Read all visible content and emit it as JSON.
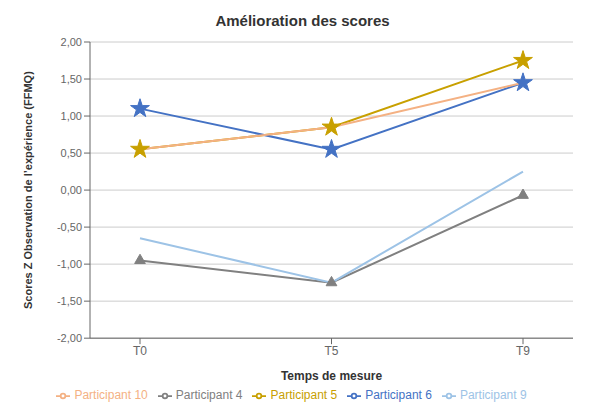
{
  "chart_data": {
    "type": "line",
    "title": "Amélioration des scores",
    "xlabel": "Temps de mesure",
    "ylabel": "Scores Z Observation de l’expérience (FFMQ)",
    "categories": [
      "T0",
      "T5",
      "T9"
    ],
    "series": [
      {
        "name": "Participant 4",
        "color": "#808080",
        "marker": "triangle",
        "values": [
          -0.95,
          -1.25,
          -0.07
        ]
      },
      {
        "name": "Participant 5",
        "color": "#C8A000",
        "marker": "star",
        "values": [
          0.55,
          0.85,
          1.75
        ]
      },
      {
        "name": "Participant 6",
        "color": "#4472C4",
        "marker": "star",
        "values": [
          1.1,
          0.55,
          1.45
        ]
      },
      {
        "name": "Participant 9",
        "color": "#9DC3E6",
        "marker": "none",
        "values": [
          -0.65,
          -1.25,
          0.25
        ]
      },
      {
        "name": "Participant 10",
        "color": "#F4B183",
        "marker": "none",
        "values": [
          0.55,
          0.85,
          1.45
        ]
      }
    ],
    "ylim": [
      -2.0,
      2.0
    ],
    "yticks": [
      {
        "value": -2.0,
        "label": "-2,00"
      },
      {
        "value": -1.5,
        "label": "-1,50"
      },
      {
        "value": -1.0,
        "label": "-1,00"
      },
      {
        "value": -0.5,
        "label": "-0,50"
      },
      {
        "value": 0.0,
        "label": "0,00"
      },
      {
        "value": 0.5,
        "label": "0,50"
      },
      {
        "value": 1.0,
        "label": "1,00"
      },
      {
        "value": 1.5,
        "label": "1,50"
      },
      {
        "value": 2.0,
        "label": "2,00"
      }
    ],
    "grid": true,
    "legend": "bottom"
  }
}
